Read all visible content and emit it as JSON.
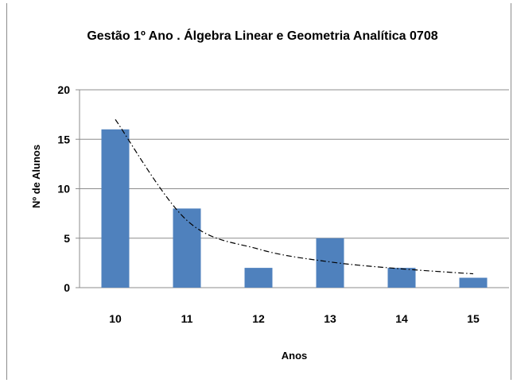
{
  "chart_data": {
    "type": "bar",
    "title": "Gestão 1º Ano . Álgebra Linear e Geometria Analítica 0708",
    "xlabel": "Anos",
    "ylabel": "Nº de Alunos",
    "categories": [
      "10",
      "11",
      "12",
      "13",
      "14",
      "15"
    ],
    "series": [
      {
        "values": [
          16,
          8,
          2,
          5,
          2,
          1
        ],
        "color": "#4f81bd"
      }
    ],
    "trendline": {
      "style": "dash-dot",
      "color": "#000000",
      "values": [
        17,
        6.8,
        3.9,
        2.6,
        1.9,
        1.4
      ]
    },
    "ylim": [
      0,
      20
    ],
    "yticks": [
      "0",
      "5",
      "10",
      "15",
      "20"
    ],
    "grid": true,
    "legend": "none"
  }
}
